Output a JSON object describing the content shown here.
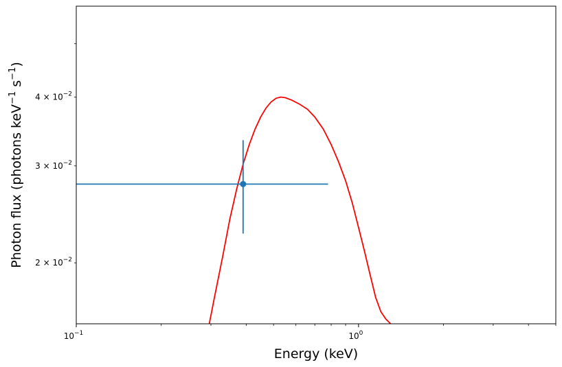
{
  "chart_data": {
    "type": "scatter",
    "xscale": "log",
    "yscale": "log",
    "xlim": [
      0.1,
      5.0
    ],
    "ylim": [
      0.0155,
      0.0585
    ],
    "xlabel": "Energy (keV)",
    "ylabel": "Photon flux (photons keV",
    "ylabel_sup1": "−1",
    "ylabel_mid": " s",
    "ylabel_sup2": "−1",
    "ylabel_end": ")",
    "x_ticks": [
      {
        "value": 0.1,
        "mantissa": "10",
        "exp": "−1"
      },
      {
        "value": 1.0,
        "mantissa": "10",
        "exp": "0"
      }
    ],
    "y_ticks": [
      {
        "value": 0.02,
        "label": "2 × 10",
        "exp": "−2"
      },
      {
        "value": 0.03,
        "label": "3 × 10",
        "exp": "−2"
      },
      {
        "value": 0.04,
        "label": "4 × 10",
        "exp": "−2"
      }
    ],
    "data_point": {
      "x": 0.39,
      "y": 0.0278,
      "xerr_low": 0.1,
      "xerr_high": 0.78,
      "yerr_low": 0.0226,
      "yerr_high": 0.0334,
      "color": "#1f77b4"
    },
    "model_curve": {
      "color": "#ff0000",
      "points": [
        [
          0.296,
          0.0155
        ],
        [
          0.31,
          0.0175
        ],
        [
          0.33,
          0.0205
        ],
        [
          0.35,
          0.024
        ],
        [
          0.37,
          0.0272
        ],
        [
          0.39,
          0.0302
        ],
        [
          0.41,
          0.0328
        ],
        [
          0.43,
          0.035
        ],
        [
          0.45,
          0.0368
        ],
        [
          0.47,
          0.0382
        ],
        [
          0.49,
          0.0392
        ],
        [
          0.51,
          0.0398
        ],
        [
          0.53,
          0.04
        ],
        [
          0.55,
          0.0399
        ],
        [
          0.58,
          0.0395
        ],
        [
          0.62,
          0.0388
        ],
        [
          0.66,
          0.038
        ],
        [
          0.7,
          0.0368
        ],
        [
          0.75,
          0.035
        ],
        [
          0.8,
          0.0328
        ],
        [
          0.85,
          0.0305
        ],
        [
          0.9,
          0.0282
        ],
        [
          0.95,
          0.0257
        ],
        [
          1.0,
          0.0232
        ],
        [
          1.05,
          0.021
        ],
        [
          1.1,
          0.019
        ],
        [
          1.15,
          0.0173
        ],
        [
          1.2,
          0.0163
        ],
        [
          1.25,
          0.0158
        ],
        [
          1.3,
          0.0155
        ]
      ]
    }
  }
}
